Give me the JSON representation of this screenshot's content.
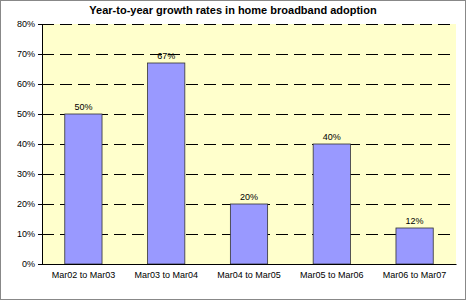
{
  "chart_data": {
    "type": "bar",
    "title": "Year-to-year growth rates in home broadband adoption",
    "categories": [
      "Mar02 to Mar03",
      "Mar03 to Mar04",
      "Mar04 to Mar05",
      "Mar05 to Mar06",
      "Mar06 to Mar07"
    ],
    "values": [
      50,
      67,
      20,
      40,
      12
    ],
    "value_labels": [
      "50%",
      "67%",
      "20%",
      "40%",
      "12%"
    ],
    "color": "#9999ff",
    "ylim": [
      0,
      80
    ],
    "yticks": [
      {
        "value": 0,
        "label": "0%"
      },
      {
        "value": 10,
        "label": "10%"
      },
      {
        "value": 20,
        "label": "20%"
      },
      {
        "value": 30,
        "label": "30%"
      },
      {
        "value": 40,
        "label": "40%"
      },
      {
        "value": 50,
        "label": "50%"
      },
      {
        "value": 60,
        "label": "60%"
      },
      {
        "value": 70,
        "label": "70%"
      },
      {
        "value": 80,
        "label": "80%"
      }
    ],
    "grid": true,
    "data_labels": true
  }
}
